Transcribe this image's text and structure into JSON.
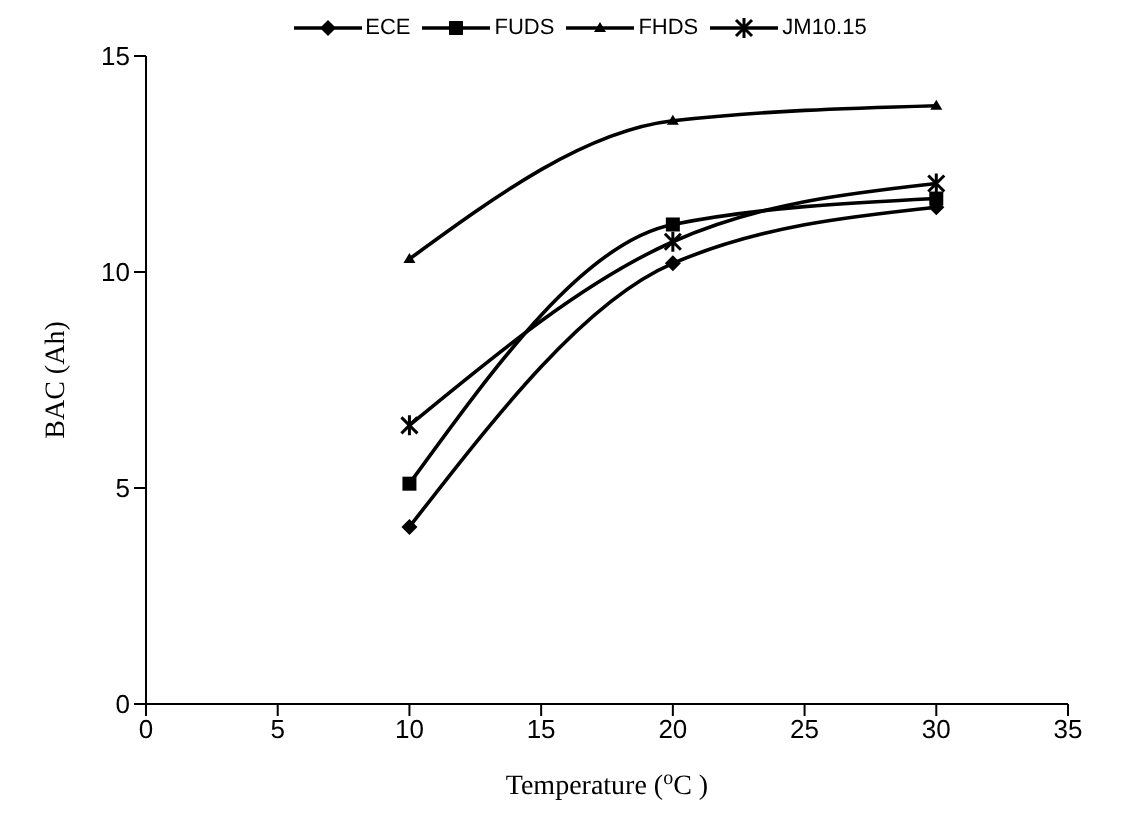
{
  "chart_data": {
    "type": "line",
    "xlabel": "Temperature ($^{o}$C )",
    "ylabel": "BAC (Ah)",
    "x": [
      10,
      20,
      30
    ],
    "series": [
      {
        "name": "ECE",
        "color": "#000000",
        "marker": "diamond",
        "values": [
          4.1,
          10.2,
          11.5
        ]
      },
      {
        "name": "FUDS",
        "color": "#000000",
        "marker": "square",
        "values": [
          5.1,
          11.1,
          11.7
        ]
      },
      {
        "name": "FHDS",
        "color": "#000000",
        "marker": "triangle",
        "values": [
          10.3,
          13.5,
          13.85
        ]
      },
      {
        "name": "JM10.15",
        "color": "#000000",
        "marker": "cross",
        "values": [
          6.45,
          10.7,
          12.05
        ]
      }
    ],
    "xlim": [
      0,
      35
    ],
    "xticks": [
      0,
      5,
      10,
      15,
      20,
      25,
      30,
      35
    ],
    "ylim": [
      0,
      15
    ],
    "yticks": [
      0,
      5,
      10,
      15
    ],
    "grid": false,
    "legend": "top"
  }
}
